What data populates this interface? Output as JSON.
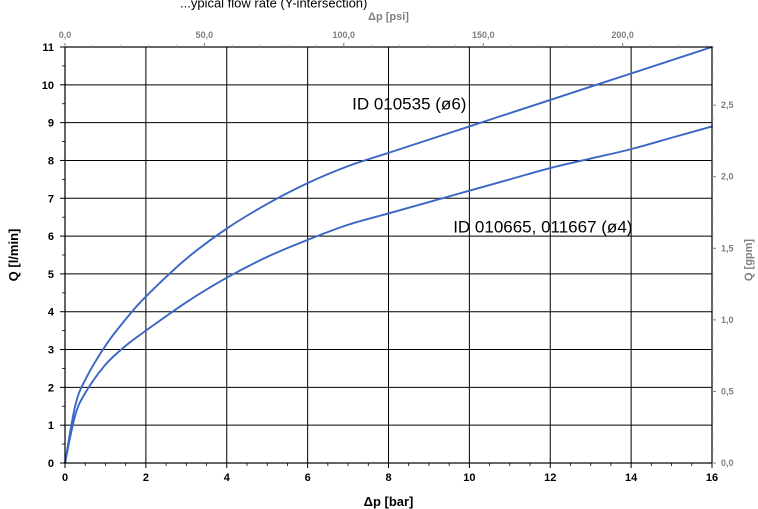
{
  "chart_data": {
    "type": "line",
    "title": "...ypical flow rate (Y-intersection)",
    "xlabel": "Δp [bar]",
    "ylabel": "Q [l/min]",
    "x2label": "Δp [psi]",
    "y2label": "Q [gpm]",
    "xlim": [
      0,
      16
    ],
    "ylim": [
      0,
      11
    ],
    "x2lim": [
      0,
      232.06
    ],
    "y2lim": [
      0,
      2.906
    ],
    "x_ticks": [
      "0",
      "2",
      "4",
      "6",
      "8",
      "10",
      "12",
      "14",
      "16"
    ],
    "y_ticks": [
      "0",
      "1",
      "2",
      "3",
      "4",
      "5",
      "6",
      "7",
      "8",
      "9",
      "10",
      "11"
    ],
    "x2_ticks": [
      {
        "value": 0,
        "label": "0,0"
      },
      {
        "value": 50,
        "label": "50,0"
      },
      {
        "value": 100,
        "label": "100,0"
      },
      {
        "value": 150,
        "label": "150,0"
      },
      {
        "value": 200,
        "label": "200,0"
      }
    ],
    "y2_ticks": [
      {
        "value": 0,
        "label": "0,0"
      },
      {
        "value": 0.5,
        "label": "0,5"
      },
      {
        "value": 1.0,
        "label": "1,0"
      },
      {
        "value": 1.5,
        "label": "1,5"
      },
      {
        "value": 2.0,
        "label": "2,0"
      },
      {
        "value": 2.5,
        "label": "2,5"
      }
    ],
    "grid": true,
    "series": [
      {
        "name": "ID 010535 (ø6)",
        "color": "#3a66c4",
        "x": [
          0,
          0.25,
          0.5,
          1,
          1.5,
          2,
          3,
          4,
          5,
          6,
          7,
          8,
          9,
          10,
          11,
          12,
          13,
          14,
          15,
          16
        ],
        "y": [
          0,
          1.5,
          2.2,
          3.1,
          3.8,
          4.4,
          5.4,
          6.2,
          6.85,
          7.4,
          7.85,
          8.2,
          8.55,
          8.9,
          9.25,
          9.6,
          9.95,
          10.3,
          10.65,
          11.0
        ]
      },
      {
        "name": "ID 010665, 011667 (ø4)",
        "color": "#3a66c4",
        "x": [
          0,
          0.25,
          0.5,
          1,
          1.5,
          2,
          3,
          4,
          5,
          6,
          7,
          8,
          9,
          10,
          11,
          12,
          13,
          14,
          15,
          16
        ],
        "y": [
          0,
          1.25,
          1.85,
          2.6,
          3.1,
          3.5,
          4.25,
          4.9,
          5.45,
          5.9,
          6.3,
          6.6,
          6.9,
          7.2,
          7.5,
          7.8,
          8.05,
          8.3,
          8.6,
          8.9
        ]
      }
    ],
    "annotations": [
      "ID 010535 (ø6)",
      "ID 010665, 011667 (ø4)"
    ]
  }
}
